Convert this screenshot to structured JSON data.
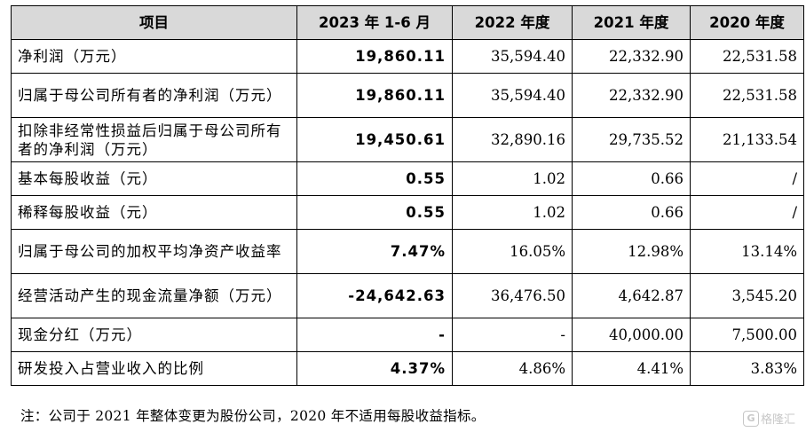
{
  "table": {
    "headers": [
      "项目",
      "2023 年 1-6 月",
      "2022 年度",
      "2021 年度",
      "2020 年度"
    ],
    "rows": [
      {
        "label": "净利润（万元）",
        "v2023": "19,860.11",
        "v2022": "35,594.40",
        "v2021": "22,332.90",
        "v2020": "22,531.58"
      },
      {
        "label": "归属于母公司所有者的净利润（万元）",
        "v2023": "19,860.11",
        "v2022": "35,594.40",
        "v2021": "22,332.90",
        "v2020": "22,531.58"
      },
      {
        "label": "扣除非经常性损益后归属于母公司所有者的净利润（万元）",
        "v2023": "19,450.61",
        "v2022": "32,890.16",
        "v2021": "29,735.52",
        "v2020": "21,133.54"
      },
      {
        "label": "基本每股收益（元）",
        "v2023": "0.55",
        "v2022": "1.02",
        "v2021": "0.66",
        "v2020": "/"
      },
      {
        "label": "稀释每股收益（元）",
        "v2023": "0.55",
        "v2022": "1.02",
        "v2021": "0.66",
        "v2020": "/"
      },
      {
        "label": "归属于母公司的加权平均净资产收益率",
        "v2023": "7.47%",
        "v2022": "16.05%",
        "v2021": "12.98%",
        "v2020": "13.14%"
      },
      {
        "label": "经营活动产生的现金流量净额（万元）",
        "v2023": "-24,642.63",
        "v2022": "36,476.50",
        "v2021": "4,642.87",
        "v2020": "3,545.20"
      },
      {
        "label": "现金分红（万元）",
        "v2023": "-",
        "v2022": "-",
        "v2021": "40,000.00",
        "v2020": "7,500.00"
      },
      {
        "label": "研发投入占营业收入的比例",
        "v2023": "4.37%",
        "v2022": "4.86%",
        "v2021": "4.41%",
        "v2020": "3.83%"
      }
    ]
  },
  "note": "注：公司于 2021 年整体变更为股份公司，2020 年不适用每股收益指标。",
  "watermark": {
    "logo": "G",
    "text": "格隆汇"
  }
}
